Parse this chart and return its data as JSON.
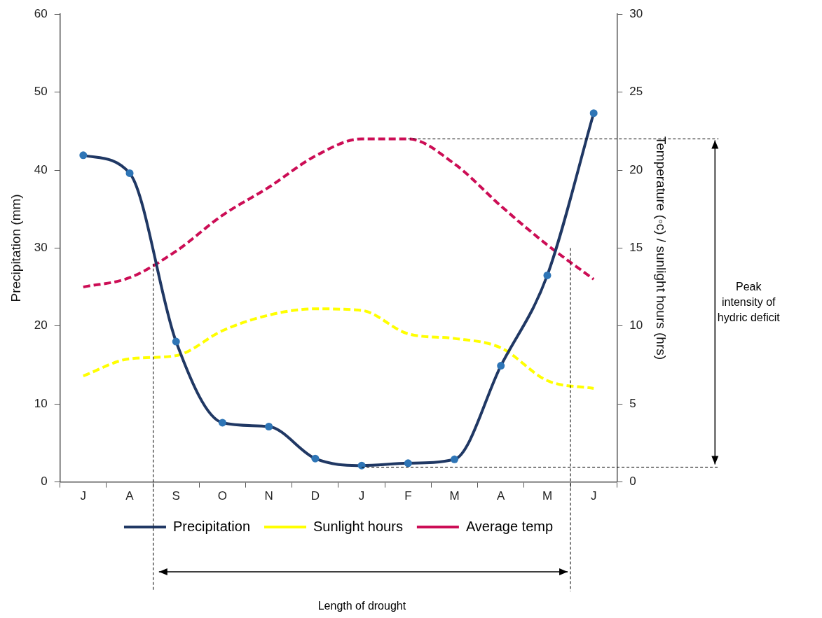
{
  "chart_data": {
    "type": "line",
    "categories": [
      "J",
      "A",
      "S",
      "O",
      "N",
      "D",
      "J",
      "F",
      "M",
      "A",
      "M",
      "J"
    ],
    "series": [
      {
        "name": "Precipitation",
        "color": "#203864",
        "marker": "circle",
        "line_style": "solid",
        "values": [
          41.9,
          39.6,
          18.0,
          7.6,
          7.1,
          3.0,
          2.1,
          2.4,
          2.9,
          14.9,
          26.5,
          47.3
        ]
      },
      {
        "name": "Sunlight hours",
        "color": "#ffff00",
        "axis": "y2",
        "marker": "none",
        "line_style": "dashed",
        "values": [
          6.8,
          7.9,
          8.1,
          9.7,
          10.7,
          11.1,
          11.0,
          9.5,
          9.2,
          8.6,
          6.5,
          6.0
        ]
      },
      {
        "name": "Average temp",
        "color": "#cc0d55",
        "axis": "y2",
        "marker": "none",
        "line_style": "dashed",
        "values": [
          12.5,
          13.1,
          14.8,
          17.1,
          18.9,
          20.9,
          22.0,
          22.0,
          20.4,
          17.7,
          15.2,
          13.0
        ]
      }
    ],
    "ylabel": "Precipitation (mm)",
    "y2label": "Temperature (◦c) / sunlight hours (hrs)",
    "ylim": [
      0,
      60
    ],
    "yticks": [
      0,
      10,
      20,
      30,
      40,
      50,
      60
    ],
    "y2lim": [
      0,
      30
    ],
    "y2ticks": [
      0,
      5,
      10,
      15,
      20,
      25,
      30
    ],
    "grid": false,
    "legend": "bottom",
    "ref_lines": [
      {
        "axis": "y2",
        "value": 22,
        "color": "#000000",
        "line_style": "dashed"
      },
      {
        "axis": "y",
        "value": 1.9,
        "color": "#000000",
        "line_style": "dashed"
      }
    ],
    "annotations": [
      "Length of drought",
      "Peak intensity of hydric deficit"
    ]
  }
}
